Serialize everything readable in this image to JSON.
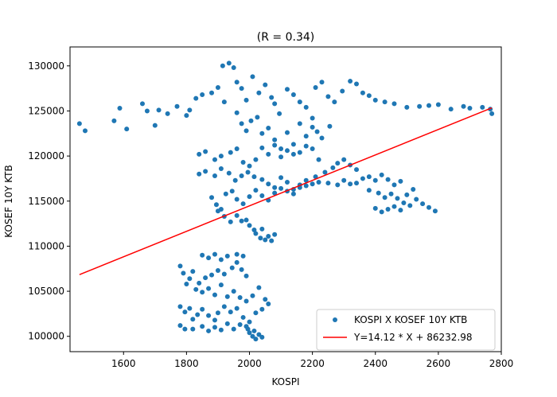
{
  "chart_data": {
    "type": "scatter",
    "title": "(R = 0.34)",
    "xlabel": "KOSPI",
    "ylabel": "KOSEF 10Y KTB",
    "xlim": [
      1430,
      2800
    ],
    "ylim": [
      98300,
      132100
    ],
    "x_ticks": [
      1400,
      1600,
      1800,
      2000,
      2200,
      2400,
      2600,
      2800
    ],
    "y_ticks": [
      100000,
      105000,
      110000,
      115000,
      120000,
      125000,
      130000
    ],
    "x_tick_labels": [
      "1400",
      "1600",
      "1800",
      "2000",
      "2200",
      "2400",
      "2600",
      "2800"
    ],
    "y_tick_labels": [
      "100000",
      "105000",
      "110000",
      "115000",
      "120000",
      "125000",
      "130000"
    ],
    "legend_position": "lower-right",
    "series": [
      {
        "name": "KOSPI X KOSEF 10Y KTB",
        "kind": "scatter",
        "color": "#1f77b4",
        "points": [
          [
            1460,
            123600
          ],
          [
            1478,
            122800
          ],
          [
            1570,
            123900
          ],
          [
            1588,
            125300
          ],
          [
            1610,
            123000
          ],
          [
            1660,
            125800
          ],
          [
            1675,
            125000
          ],
          [
            1700,
            123400
          ],
          [
            1712,
            125100
          ],
          [
            1740,
            124700
          ],
          [
            1770,
            125500
          ],
          [
            1800,
            124500
          ],
          [
            1810,
            125100
          ],
          [
            1830,
            126400
          ],
          [
            1850,
            126800
          ],
          [
            1880,
            127000
          ],
          [
            1900,
            127600
          ],
          [
            1920,
            126000
          ],
          [
            1915,
            130000
          ],
          [
            1935,
            130300
          ],
          [
            1950,
            129800
          ],
          [
            1960,
            128200
          ],
          [
            1975,
            127500
          ],
          [
            1990,
            126200
          ],
          [
            2010,
            128800
          ],
          [
            2030,
            127000
          ],
          [
            2050,
            127900
          ],
          [
            2070,
            126500
          ],
          [
            2080,
            125800
          ],
          [
            2095,
            124700
          ],
          [
            2120,
            127400
          ],
          [
            2140,
            126800
          ],
          [
            2160,
            126000
          ],
          [
            2180,
            125400
          ],
          [
            2200,
            124200
          ],
          [
            2210,
            127600
          ],
          [
            2230,
            128200
          ],
          [
            2250,
            126600
          ],
          [
            2270,
            126000
          ],
          [
            2295,
            127200
          ],
          [
            2320,
            128300
          ],
          [
            2340,
            128000
          ],
          [
            2360,
            127000
          ],
          [
            2380,
            126700
          ],
          [
            2400,
            126200
          ],
          [
            2430,
            126000
          ],
          [
            2460,
            125800
          ],
          [
            2500,
            125400
          ],
          [
            2540,
            125500
          ],
          [
            2570,
            125600
          ],
          [
            2600,
            125700
          ],
          [
            2640,
            125200
          ],
          [
            2680,
            125500
          ],
          [
            2700,
            125300
          ],
          [
            2740,
            125400
          ],
          [
            2765,
            125200
          ],
          [
            2770,
            124700
          ],
          [
            1960,
            124800
          ],
          [
            1975,
            123600
          ],
          [
            1990,
            122800
          ],
          [
            2005,
            123900
          ],
          [
            2025,
            124300
          ],
          [
            2040,
            122500
          ],
          [
            2060,
            123100
          ],
          [
            2080,
            121800
          ],
          [
            2100,
            120800
          ],
          [
            2120,
            122600
          ],
          [
            2140,
            121300
          ],
          [
            2160,
            123600
          ],
          [
            2180,
            122200
          ],
          [
            2200,
            123200
          ],
          [
            2215,
            122700
          ],
          [
            2230,
            122000
          ],
          [
            2255,
            123300
          ],
          [
            1840,
            120200
          ],
          [
            1860,
            120500
          ],
          [
            1890,
            119600
          ],
          [
            1910,
            120000
          ],
          [
            1940,
            120400
          ],
          [
            1960,
            120800
          ],
          [
            1980,
            119300
          ],
          [
            2000,
            118900
          ],
          [
            2020,
            119600
          ],
          [
            2040,
            120900
          ],
          [
            2060,
            120200
          ],
          [
            2080,
            121200
          ],
          [
            2100,
            119900
          ],
          [
            2120,
            120600
          ],
          [
            2140,
            120200
          ],
          [
            2160,
            120400
          ],
          [
            2180,
            121100
          ],
          [
            2200,
            120800
          ],
          [
            2220,
            119600
          ],
          [
            1840,
            118000
          ],
          [
            1860,
            118300
          ],
          [
            1890,
            117800
          ],
          [
            1910,
            118600
          ],
          [
            1935,
            118100
          ],
          [
            1955,
            117300
          ],
          [
            1975,
            117800
          ],
          [
            1995,
            118200
          ],
          [
            2015,
            117700
          ],
          [
            2040,
            117400
          ],
          [
            2060,
            116900
          ],
          [
            2080,
            116500
          ],
          [
            2100,
            117600
          ],
          [
            2120,
            117100
          ],
          [
            2140,
            116300
          ],
          [
            2160,
            116800
          ],
          [
            2180,
            117300
          ],
          [
            2210,
            117700
          ],
          [
            2240,
            118200
          ],
          [
            2265,
            118700
          ],
          [
            2280,
            119200
          ],
          [
            2300,
            119600
          ],
          [
            2320,
            119000
          ],
          [
            2340,
            118500
          ],
          [
            1880,
            115400
          ],
          [
            1895,
            114600
          ],
          [
            1910,
            114100
          ],
          [
            1925,
            115800
          ],
          [
            1945,
            116100
          ],
          [
            1960,
            115200
          ],
          [
            1980,
            114700
          ],
          [
            2000,
            115500
          ],
          [
            2020,
            116200
          ],
          [
            2040,
            115600
          ],
          [
            2060,
            115100
          ],
          [
            2080,
            115900
          ],
          [
            2100,
            116400
          ],
          [
            2120,
            116100
          ],
          [
            2140,
            115800
          ],
          [
            2160,
            116500
          ],
          [
            2180,
            116700
          ],
          [
            2200,
            116900
          ],
          [
            2220,
            117100
          ],
          [
            2250,
            117000
          ],
          [
            2280,
            116800
          ],
          [
            2300,
            117300
          ],
          [
            2320,
            116900
          ],
          [
            2340,
            117000
          ],
          [
            2360,
            117500
          ],
          [
            2380,
            117700
          ],
          [
            2400,
            117300
          ],
          [
            2420,
            117900
          ],
          [
            2440,
            117400
          ],
          [
            2460,
            116800
          ],
          [
            2480,
            117200
          ],
          [
            2380,
            116200
          ],
          [
            2410,
            115900
          ],
          [
            2430,
            115400
          ],
          [
            2450,
            115800
          ],
          [
            2470,
            115300
          ],
          [
            2490,
            114800
          ],
          [
            2510,
            114500
          ],
          [
            2530,
            115200
          ],
          [
            2550,
            114700
          ],
          [
            2570,
            114300
          ],
          [
            2590,
            113900
          ],
          [
            2460,
            114400
          ],
          [
            2480,
            114000
          ],
          [
            2500,
            115700
          ],
          [
            2520,
            116300
          ],
          [
            2400,
            114200
          ],
          [
            2420,
            113800
          ],
          [
            2440,
            114100
          ],
          [
            1900,
            113900
          ],
          [
            1920,
            113300
          ],
          [
            1940,
            112700
          ],
          [
            1960,
            113400
          ],
          [
            1975,
            112800
          ],
          [
            2000,
            112300
          ],
          [
            2020,
            111400
          ],
          [
            2040,
            111900
          ],
          [
            2050,
            110700
          ],
          [
            2060,
            111100
          ],
          [
            2070,
            110600
          ],
          [
            2080,
            111300
          ],
          [
            2035,
            110900
          ],
          [
            2015,
            111800
          ],
          [
            1990,
            112900
          ],
          [
            1850,
            109000
          ],
          [
            1870,
            108700
          ],
          [
            1890,
            109100
          ],
          [
            1910,
            108500
          ],
          [
            1930,
            108900
          ],
          [
            1945,
            107600
          ],
          [
            1960,
            108200
          ],
          [
            1975,
            107400
          ],
          [
            1990,
            106700
          ],
          [
            1980,
            108900
          ],
          [
            1960,
            109100
          ],
          [
            1920,
            106900
          ],
          [
            1900,
            107300
          ],
          [
            1880,
            106800
          ],
          [
            1860,
            106500
          ],
          [
            1840,
            105900
          ],
          [
            1850,
            104900
          ],
          [
            1870,
            105300
          ],
          [
            1890,
            104600
          ],
          [
            1910,
            105700
          ],
          [
            1930,
            104400
          ],
          [
            1950,
            105000
          ],
          [
            1970,
            104300
          ],
          [
            1990,
            103900
          ],
          [
            2010,
            104500
          ],
          [
            2030,
            105400
          ],
          [
            2050,
            104100
          ],
          [
            2060,
            103600
          ],
          [
            1780,
            107800
          ],
          [
            1790,
            107000
          ],
          [
            1800,
            105800
          ],
          [
            1810,
            106400
          ],
          [
            1820,
            107200
          ],
          [
            1830,
            105200
          ],
          [
            1780,
            103300
          ],
          [
            1795,
            102700
          ],
          [
            1810,
            103100
          ],
          [
            1820,
            101900
          ],
          [
            1835,
            102400
          ],
          [
            1850,
            103000
          ],
          [
            1870,
            102300
          ],
          [
            1890,
            101800
          ],
          [
            1900,
            102600
          ],
          [
            1920,
            103300
          ],
          [
            1940,
            102700
          ],
          [
            1960,
            103100
          ],
          [
            1980,
            102100
          ],
          [
            2000,
            101600
          ],
          [
            2020,
            102600
          ],
          [
            2040,
            103000
          ],
          [
            1780,
            101200
          ],
          [
            1795,
            100800
          ],
          [
            1820,
            100800
          ],
          [
            1850,
            101100
          ],
          [
            1870,
            100600
          ],
          [
            1890,
            101000
          ],
          [
            1910,
            100700
          ],
          [
            1930,
            101400
          ],
          [
            1950,
            100800
          ],
          [
            1970,
            101300
          ],
          [
            1990,
            101100
          ],
          [
            2000,
            100400
          ],
          [
            2010,
            100000
          ],
          [
            2020,
            99700
          ],
          [
            2030,
            100200
          ],
          [
            2040,
            99900
          ],
          [
            2015,
            100600
          ],
          [
            1995,
            100800
          ]
        ]
      },
      {
        "name": "Y=14.12 * X + 86232.98",
        "kind": "line",
        "color": "#ff0000",
        "x": [
          1460,
          2770
        ],
        "y": [
          106848,
          125345
        ]
      }
    ]
  }
}
